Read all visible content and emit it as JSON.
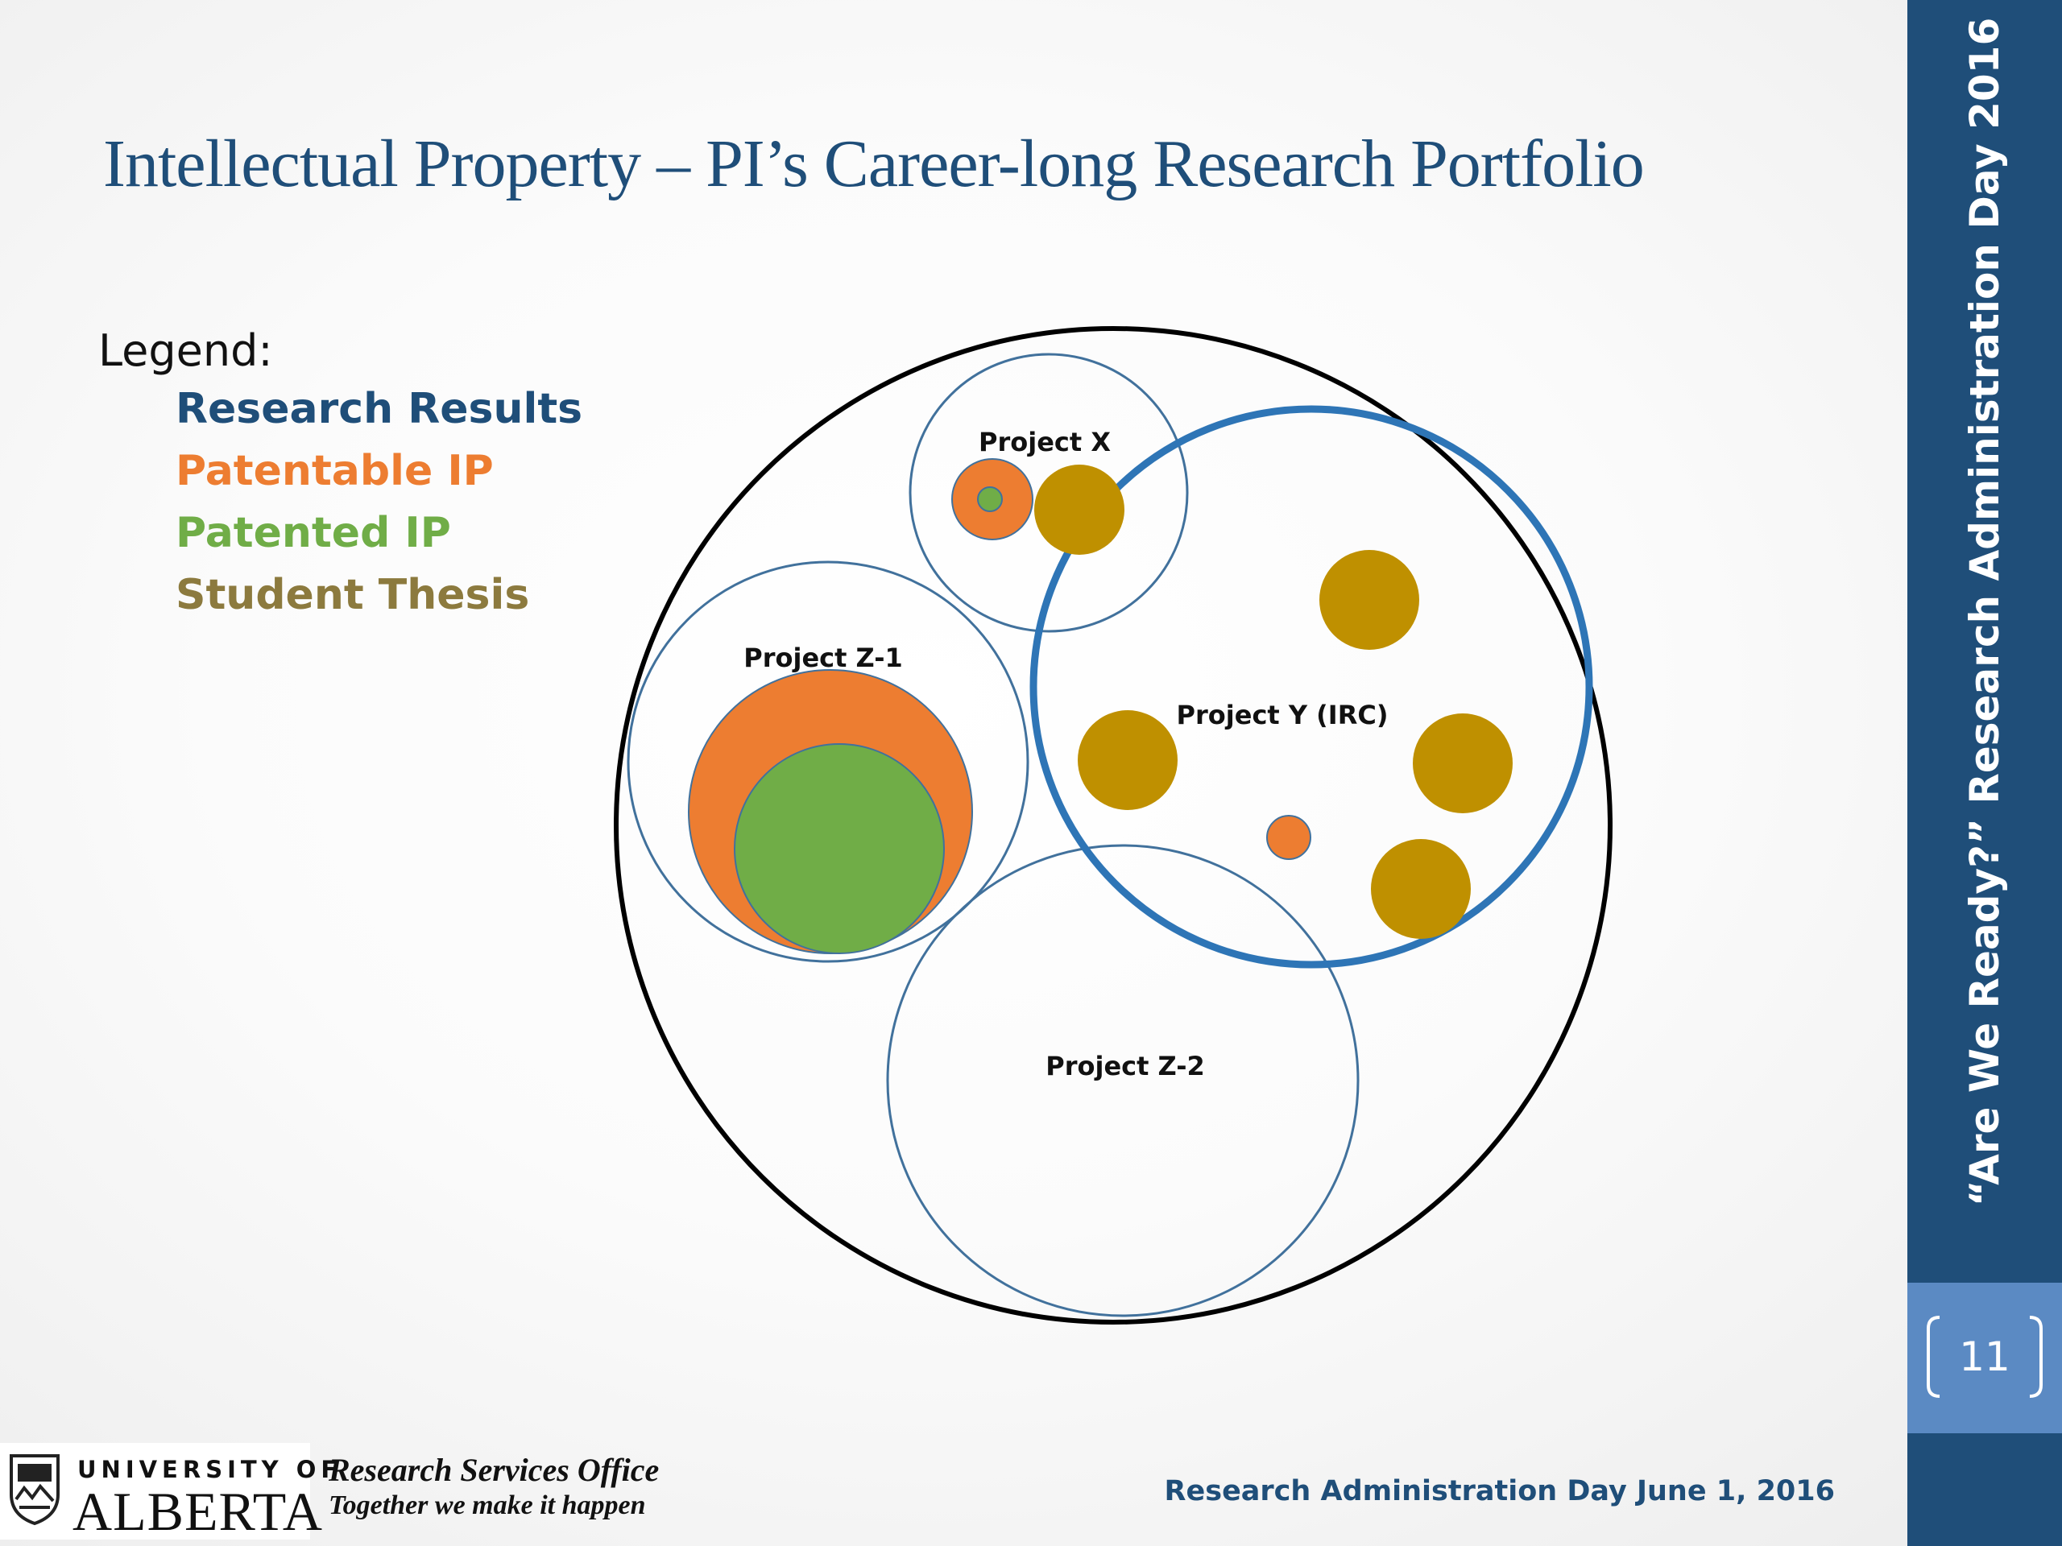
{
  "slide": {
    "title": "Intellectual Property – PI’s Career-long Research Portfolio",
    "side_title": "“Are We Ready?” Research Administration Day 2016",
    "page_number": "11"
  },
  "legend": {
    "heading": "Legend:",
    "items": [
      {
        "label": "Research Results",
        "color": "#1f4e79"
      },
      {
        "label": "Patentable IP",
        "color": "#ed7d31"
      },
      {
        "label": "Patented IP",
        "color": "#70ad47"
      },
      {
        "label": "Student Thesis",
        "color": "#8c7a3e"
      }
    ]
  },
  "diagram": {
    "projects": [
      "Project X",
      "Project Z-1",
      "Project Y (IRC)",
      "Project Z-2"
    ],
    "colors": {
      "portfolio": "#000000",
      "project": "#41719c",
      "project_highlight": "#2e75b6",
      "patentable": "#ed7d31",
      "patented": "#70ad47",
      "thesis": "#bf9000"
    }
  },
  "footer": {
    "university_small": "UNIVERSITY OF",
    "university_big": "ALBERTA",
    "office": "Research Services Office",
    "tagline": "Together we make it happen",
    "event_date": "Research Administration Day June 1, 2016"
  }
}
